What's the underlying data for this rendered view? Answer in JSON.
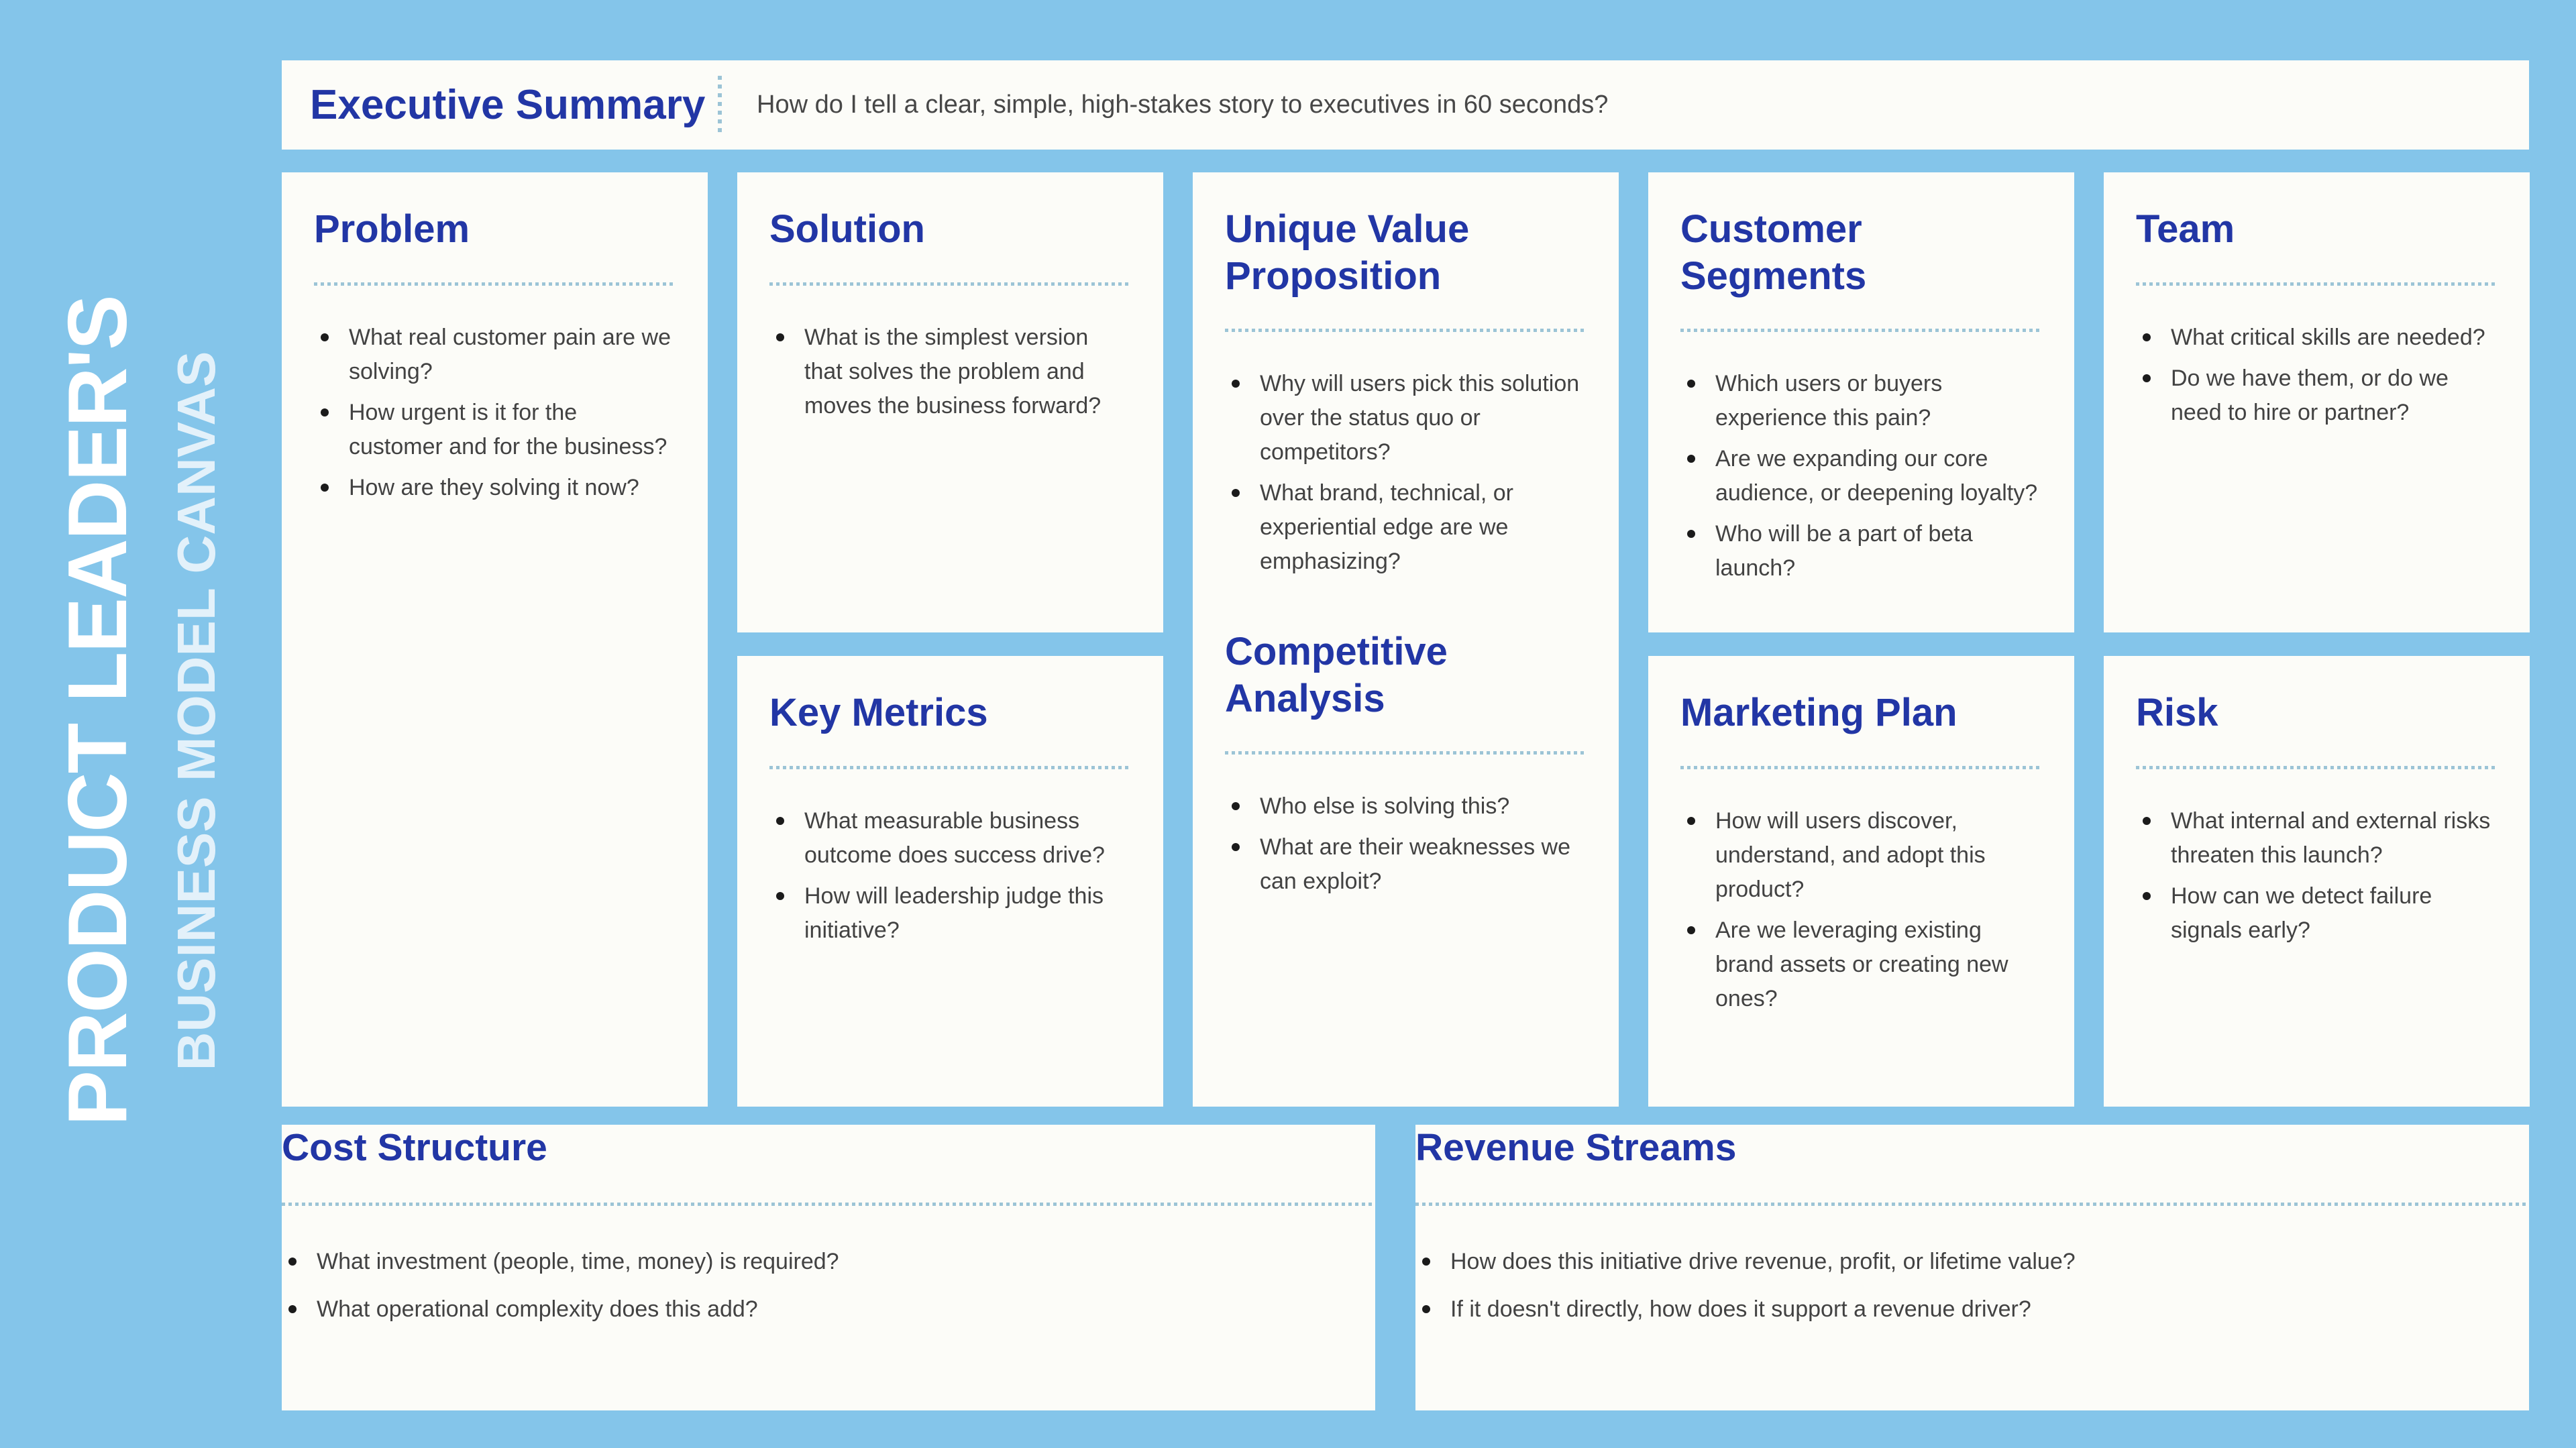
{
  "side": {
    "title": "PRODUCT LEADER'S",
    "subtitle": "BUSINESS MODEL CANVAS"
  },
  "header": {
    "title": "Executive Summary",
    "question": "How do I tell a clear, simple, high-stakes story to executives in 60 seconds?"
  },
  "sections": {
    "problem": {
      "title": "Problem",
      "bullets": [
        "What real customer pain are we solving?",
        "How urgent is it for the customer and for the business?",
        "How are they solving it now?"
      ]
    },
    "solution": {
      "title": "Solution",
      "bullets": [
        "What is the simplest version that solves the problem and moves the business forward?"
      ]
    },
    "key_metrics": {
      "title": "Key Metrics",
      "bullets": [
        "What measurable business outcome does success drive?",
        "How will leadership judge this initiative?"
      ]
    },
    "unique_value_proposition": {
      "title": "Unique Value Proposition",
      "bullets": [
        "Why will users pick this solution over the status quo or competitors?",
        "What brand, technical, or experiential edge are we emphasizing?"
      ]
    },
    "competitive_analysis": {
      "title": "Competitive Analysis",
      "bullets": [
        "Who else is solving this?",
        "What are their weaknesses we can exploit?"
      ]
    },
    "customer_segments": {
      "title": "Customer Segments",
      "bullets": [
        "Which users or buyers experience this pain?",
        "Are we expanding our core audience, or deepening loyalty?",
        "Who will be a part of beta launch?"
      ]
    },
    "marketing_plan": {
      "title": "Marketing Plan",
      "bullets": [
        "How will users discover, understand, and adopt this product?",
        "Are we leveraging existing brand assets or creating new ones?"
      ]
    },
    "team": {
      "title": "Team",
      "bullets": [
        "What critical skills are needed?",
        "Do we have them, or do we need to hire or partner?"
      ]
    },
    "risk": {
      "title": "Risk",
      "bullets": [
        "What internal and external risks threaten this launch?",
        "How can we detect failure signals early?"
      ]
    },
    "cost_structure": {
      "title": "Cost Structure",
      "bullets": [
        "What investment (people, time, money) is required?",
        "What operational complexity does this add?"
      ]
    },
    "revenue_streams": {
      "title": "Revenue Streams",
      "bullets": [
        "How does this initiative drive revenue, profit, or lifetime value?",
        "If it doesn't directly, how does it support a revenue driver?"
      ]
    }
  },
  "colors": {
    "background": "#84c5ea",
    "card": "#fcfcf8",
    "heading_blue": "#2236a5",
    "dotted_rule": "#9cc4d6",
    "body_text": "#424242",
    "side_title": "#ffffff",
    "side_subtitle": "#e3f1fa"
  }
}
